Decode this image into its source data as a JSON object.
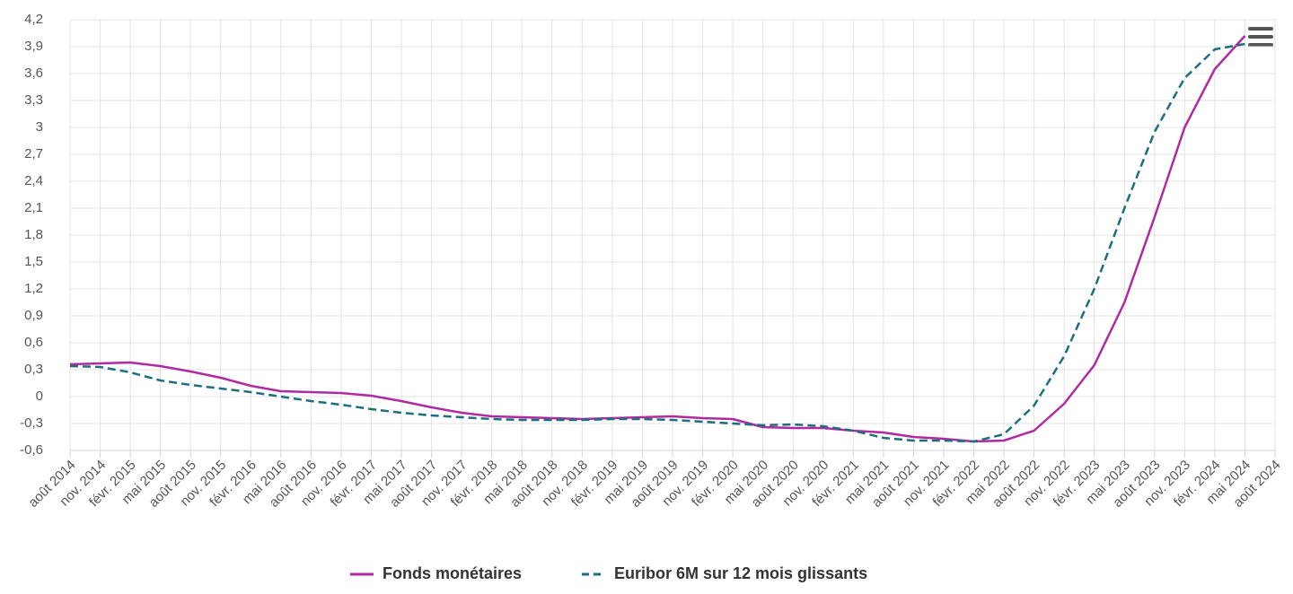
{
  "chart_data": {
    "type": "line",
    "categories": [
      "août 2014",
      "nov. 2014",
      "févr. 2015",
      "mai 2015",
      "août 2015",
      "nov. 2015",
      "févr. 2016",
      "mai 2016",
      "août 2016",
      "nov. 2016",
      "févr. 2017",
      "mai 2017",
      "août 2017",
      "nov. 2017",
      "févr. 2018",
      "mai 2018",
      "août 2018",
      "nov. 2018",
      "févr. 2019",
      "mai 2019",
      "août 2019",
      "nov. 2019",
      "févr. 2020",
      "mai 2020",
      "août 2020",
      "nov. 2020",
      "févr. 2021",
      "mai 2021",
      "août 2021",
      "nov. 2021",
      "févr. 2022",
      "mai 2022",
      "août 2022",
      "nov. 2022",
      "févr. 2023",
      "mai 2023",
      "août 2023",
      "nov. 2023",
      "févr. 2024",
      "mai 2024",
      "août 2024"
    ],
    "series": [
      {
        "name": "Fonds monétaires",
        "color": "#b02aa2",
        "dashed": false,
        "values": [
          0.36,
          0.37,
          0.38,
          0.34,
          0.28,
          0.21,
          0.12,
          0.06,
          0.05,
          0.04,
          0.01,
          -0.05,
          -0.12,
          -0.18,
          -0.22,
          -0.23,
          -0.24,
          -0.25,
          -0.24,
          -0.23,
          -0.22,
          -0.24,
          -0.25,
          -0.34,
          -0.35,
          -0.35,
          -0.38,
          -0.4,
          -0.45,
          -0.47,
          -0.5,
          -0.49,
          -0.38,
          -0.08,
          0.35,
          1.05,
          2.0,
          3.0,
          3.65,
          4.02,
          null
        ]
      },
      {
        "name": "Euribor 6M sur 12 mois glissants",
        "color": "#1c6f7e",
        "dashed": true,
        "values": [
          0.34,
          0.33,
          0.27,
          0.18,
          0.13,
          0.09,
          0.05,
          0.0,
          -0.05,
          -0.09,
          -0.14,
          -0.18,
          -0.21,
          -0.23,
          -0.25,
          -0.26,
          -0.26,
          -0.26,
          -0.25,
          -0.25,
          -0.26,
          -0.28,
          -0.3,
          -0.32,
          -0.31,
          -0.33,
          -0.38,
          -0.46,
          -0.49,
          -0.49,
          -0.5,
          -0.42,
          -0.1,
          0.45,
          1.2,
          2.1,
          2.95,
          3.55,
          3.87,
          3.93,
          null
        ]
      }
    ],
    "ylim": [
      -0.6,
      4.2
    ],
    "yticks": [
      {
        "value": -0.6,
        "label": "-0,6"
      },
      {
        "value": -0.3,
        "label": "-0,3"
      },
      0,
      {
        "value": 0.3,
        "label": "0,3"
      },
      {
        "value": 0.6,
        "label": "0,6"
      },
      {
        "value": 0.9,
        "label": "0,9"
      },
      {
        "value": 1.2,
        "label": "1,2"
      },
      {
        "value": 1.5,
        "label": "1,5"
      },
      {
        "value": 1.8,
        "label": "1,8"
      },
      {
        "value": 2.1,
        "label": "2,1"
      },
      {
        "value": 2.4,
        "label": "2,4"
      },
      {
        "value": 2.7,
        "label": "2,7"
      },
      3,
      {
        "value": 3.3,
        "label": "3,3"
      },
      {
        "value": 3.6,
        "label": "3,6"
      },
      {
        "value": 3.9,
        "label": "3,9"
      },
      {
        "value": 4.2,
        "label": "4,2"
      }
    ],
    "grid": true,
    "legend": "bottom"
  }
}
